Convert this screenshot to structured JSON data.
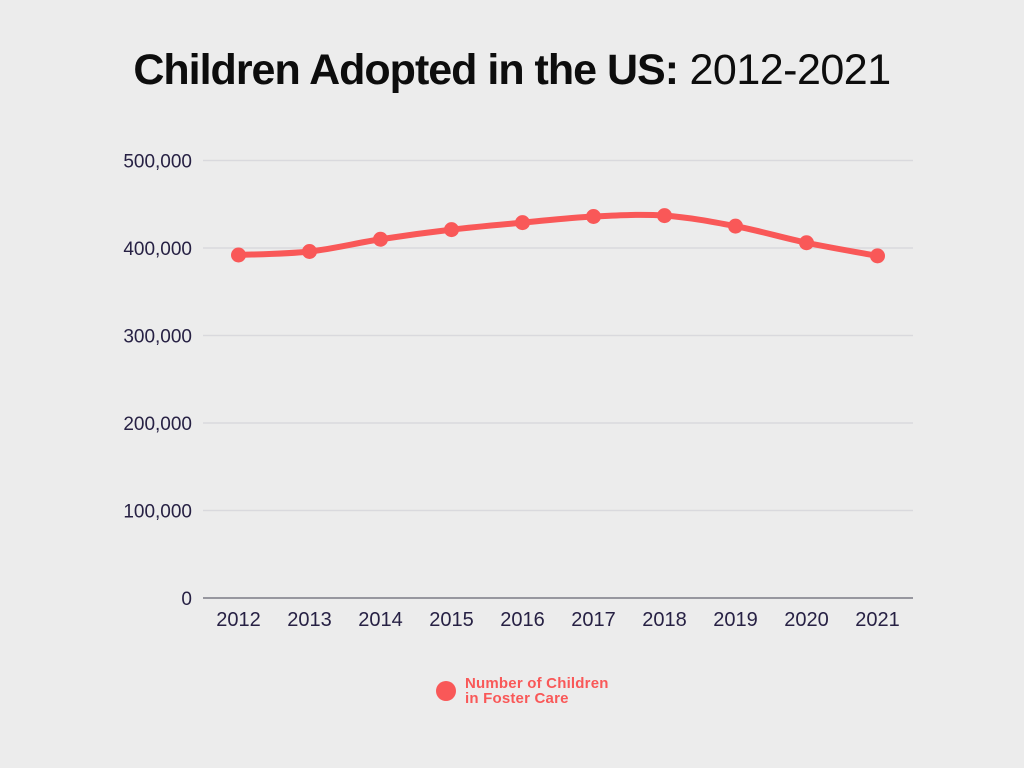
{
  "page": {
    "background": "#ececec"
  },
  "title": {
    "bold_part": "Children Adopted in the US:",
    "regular_part": " 2012-2021"
  },
  "chart_data": {
    "type": "line",
    "title": "Children Adopted in the US: 2012-2021",
    "categories": [
      "2012",
      "2013",
      "2014",
      "2015",
      "2016",
      "2017",
      "2018",
      "2019",
      "2020",
      "2021"
    ],
    "series": [
      {
        "name": "Number of Children in Foster Care",
        "values": [
          392000,
          396000,
          410000,
          421000,
          429000,
          436000,
          437000,
          425000,
          406000,
          391000
        ],
        "color": "#f95858",
        "marker": "circle"
      }
    ],
    "xlabel": "",
    "ylabel": "",
    "ylim": [
      0,
      500000
    ],
    "ytick_values": [
      0,
      100000,
      200000,
      300000,
      400000,
      500000
    ],
    "ytick_labels": [
      "0",
      "100,000",
      "200,000",
      "300,000",
      "400,000",
      "500,000"
    ],
    "grid": true,
    "legend_position": "bottom-center",
    "legend_lines": [
      "Number of Children",
      "in Foster Care"
    ]
  },
  "colors": {
    "background": "#ececec",
    "series_red": "#f95858",
    "axis_label": "#272144",
    "gridline": "#d9d9dd",
    "axis_line": "#97979f",
    "title_text": "#0d0d0d"
  }
}
